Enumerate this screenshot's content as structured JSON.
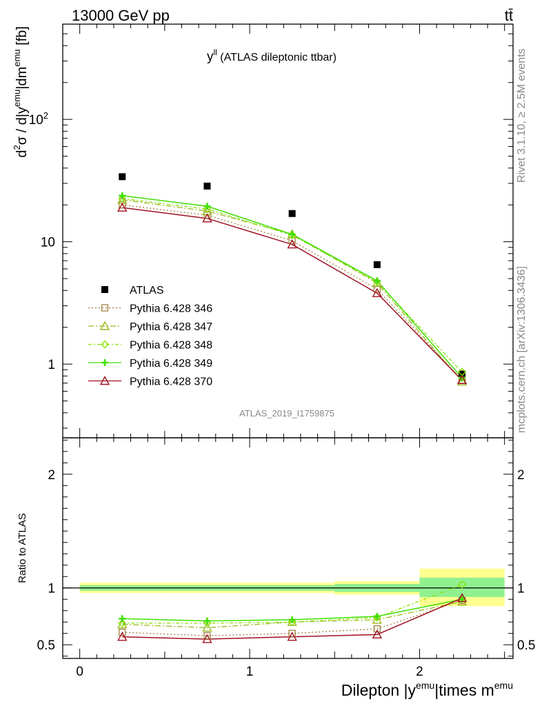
{
  "header": {
    "energy_label": "13000 GeV pp",
    "process_label": "tt̄"
  },
  "plot_title": "y^{ll} (ATLAS dileptonic ttbar)",
  "plot_title_parts": {
    "main": "y",
    "sup": "ll",
    "rest": " (ATLAS dileptonic ttbar)"
  },
  "analysis_id": "ATLAS_2019_I1759875",
  "side_labels": {
    "rivet": "Rivet 3.1.10, ≥ 2.5M events",
    "mcplots": "mcplots.cern.ch [arXiv:1306.3436]"
  },
  "colors": {
    "ATLAS": "#000000",
    "346": "#a08040",
    "347": "#9ab820",
    "348": "#88e000",
    "349": "#40e000",
    "370": "#a01020",
    "band_stat": "#90f090",
    "band_syst": "#ffff90"
  },
  "chart_data": [
    {
      "type": "scatter",
      "panel": "main",
      "yscale": "log",
      "ylabel": "d²σ / d|y^{emu}|dm^{emu} [fb]",
      "ylabel_parts": {
        "a": "d",
        "b": "2",
        "c": "σ / d|y",
        "d": "emu",
        "e": "|dm",
        "f": "emu",
        "g": " [fb]"
      },
      "xlim": [
        -0.1,
        2.55
      ],
      "ylim": [
        0.25,
        600
      ],
      "yticks": [
        {
          "value": 1,
          "label": "1"
        },
        {
          "value": 10,
          "label": "10"
        },
        {
          "value": 100,
          "label": "10",
          "sup": "2"
        }
      ],
      "x": [
        0.25,
        0.75,
        1.25,
        1.75,
        2.25
      ],
      "series": [
        {
          "name": "ATLAS",
          "key": "ATLAS",
          "values": [
            34,
            28.5,
            17,
            6.5,
            0.83
          ],
          "marker": "square"
        },
        {
          "name": "Pythia 6.428 346",
          "key": "346",
          "values": [
            20.0,
            16.5,
            10.2,
            4.1,
            0.74
          ],
          "marker": "open-square",
          "dash": "dotted"
        },
        {
          "name": "Pythia 6.428 347",
          "key": "347",
          "values": [
            22.0,
            17.8,
            11.5,
            4.6,
            0.72
          ],
          "marker": "open-triangle",
          "dash": "dashdot"
        },
        {
          "name": "Pythia 6.428 348",
          "key": "348",
          "values": [
            22.5,
            18.5,
            11.3,
            4.7,
            0.86
          ],
          "marker": "diamond",
          "dash": "dashdot2"
        },
        {
          "name": "Pythia 6.428 349",
          "key": "349",
          "values": [
            23.8,
            19.5,
            11.5,
            4.8,
            0.77
          ],
          "marker": "cross",
          "dash": "solid"
        },
        {
          "name": "Pythia 6.428 370",
          "key": "370",
          "values": [
            19.0,
            15.5,
            9.5,
            3.8,
            0.74
          ],
          "marker": "open-triangle",
          "dash": "solid"
        }
      ]
    },
    {
      "type": "line",
      "panel": "ratio",
      "ylabel": "Ratio to ATLAS",
      "xlabel": "Dilepton |y^{emu}|times m^{emu}",
      "xlabel_parts": {
        "a": "Dilepton |y",
        "b": "emu",
        "c": "|times m",
        "d": "emu"
      },
      "xlim": [
        -0.1,
        2.55
      ],
      "ylim": [
        0.38,
        2.32
      ],
      "xticks": [
        {
          "value": 0,
          "label": "0"
        },
        {
          "value": 1,
          "label": "1"
        },
        {
          "value": 2,
          "label": "2"
        }
      ],
      "yticks": [
        {
          "value": 0.5,
          "label": "0.5"
        },
        {
          "value": 1,
          "label": "1"
        },
        {
          "value": 2,
          "label": "2"
        }
      ],
      "x": [
        0.25,
        0.75,
        1.25,
        1.75,
        2.25
      ],
      "bands": {
        "edges": [
          0,
          0.5,
          1,
          1.5,
          2,
          2.5
        ],
        "syst": [
          [
            0.955,
            1.045
          ],
          [
            0.955,
            1.045
          ],
          [
            0.955,
            1.045
          ],
          [
            0.94,
            1.06
          ],
          [
            0.84,
            1.17
          ]
        ],
        "stat": [
          [
            0.975,
            1.025
          ],
          [
            0.975,
            1.025
          ],
          [
            0.975,
            1.025
          ],
          [
            0.965,
            1.035
          ],
          [
            0.92,
            1.09
          ]
        ]
      },
      "series": [
        {
          "name": "Pythia 6.428 346",
          "key": "346",
          "values": [
            0.61,
            0.58,
            0.6,
            0.64,
            0.89
          ]
        },
        {
          "name": "Pythia 6.428 347",
          "key": "347",
          "values": [
            0.68,
            0.65,
            0.7,
            0.72,
            0.88
          ]
        },
        {
          "name": "Pythia 6.428 348",
          "key": "348",
          "values": [
            0.69,
            0.69,
            0.7,
            0.74,
            1.03
          ]
        },
        {
          "name": "Pythia 6.428 349",
          "key": "349",
          "values": [
            0.73,
            0.71,
            0.72,
            0.75,
            0.9
          ]
        },
        {
          "name": "Pythia 6.428 370",
          "key": "370",
          "values": [
            0.57,
            0.55,
            0.57,
            0.59,
            0.91
          ]
        }
      ]
    }
  ],
  "legend_placement": "lower-left"
}
